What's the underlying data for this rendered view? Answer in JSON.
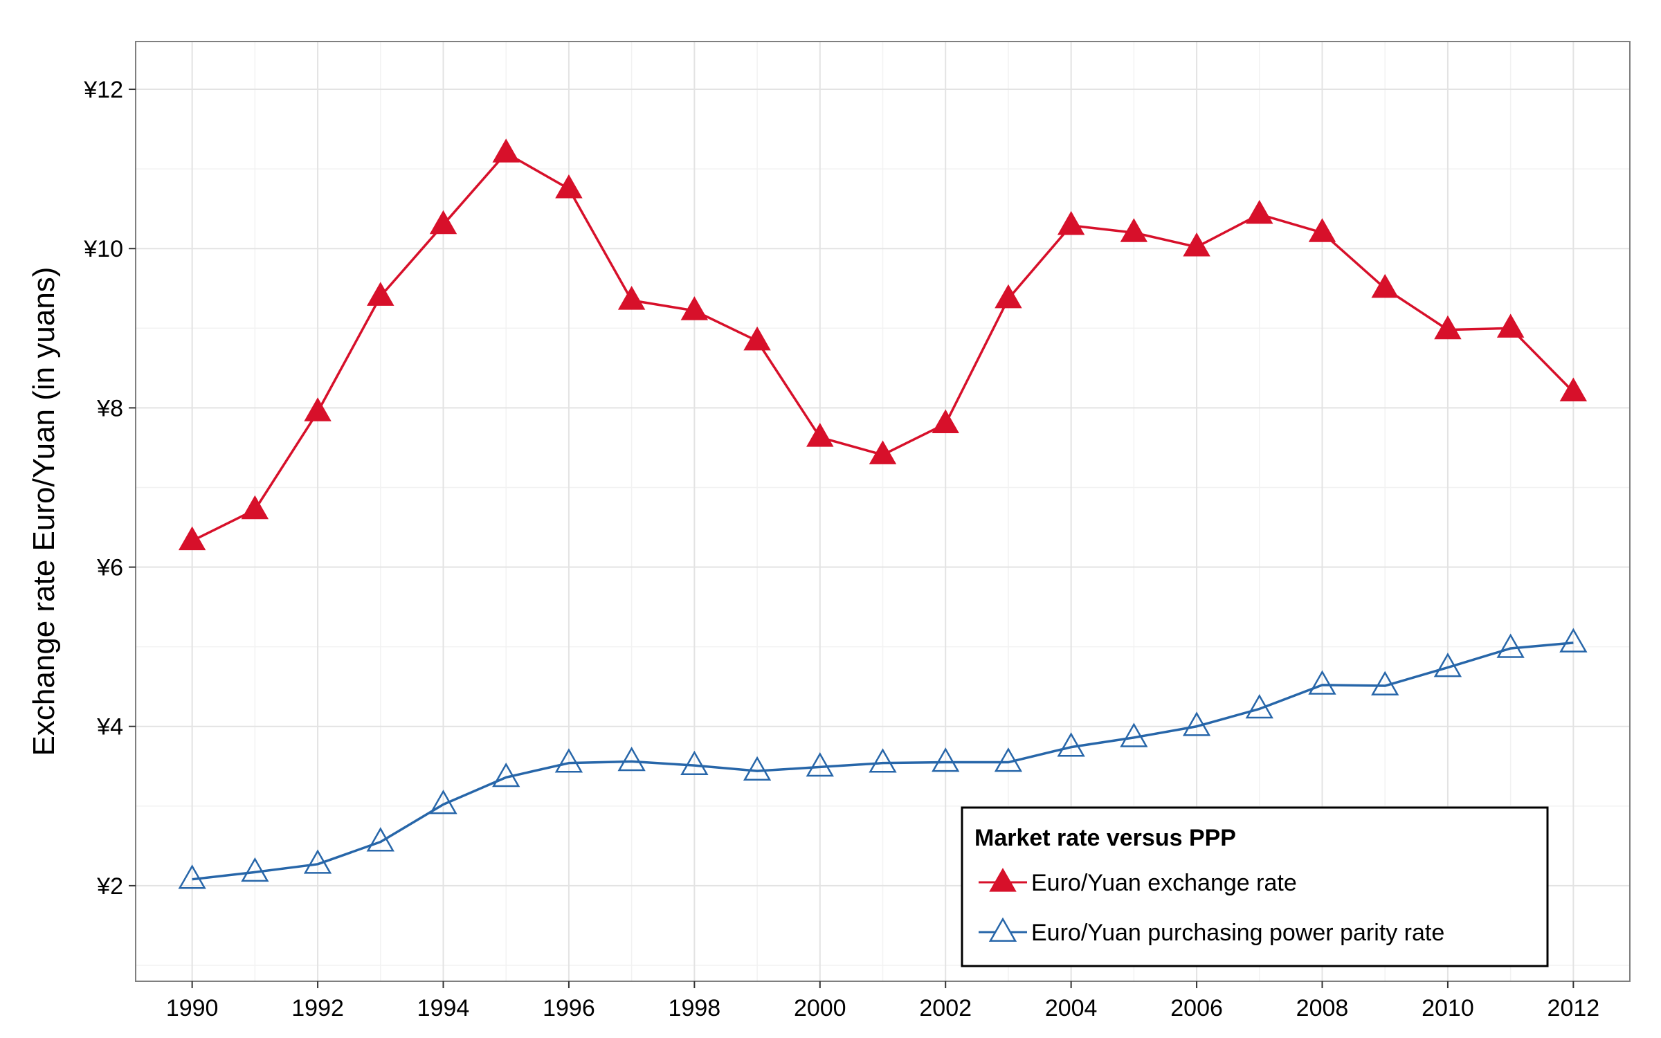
{
  "chart_data": {
    "type": "line",
    "title": "",
    "xlabel": "",
    "ylabel": "Exchange rate Euro/Yuan (in yuans)",
    "x": [
      1990,
      1991,
      1992,
      1993,
      1994,
      1995,
      1996,
      1997,
      1998,
      1999,
      2000,
      2001,
      2002,
      2003,
      2004,
      2005,
      2006,
      2007,
      2008,
      2009,
      2010,
      2011,
      2012
    ],
    "xlim": [
      1989.1,
      2012.9
    ],
    "ylim": [
      0.8,
      12.6
    ],
    "x_ticks": [
      1990,
      1992,
      1994,
      1996,
      1998,
      2000,
      2002,
      2004,
      2006,
      2008,
      2010,
      2012
    ],
    "x_tick_labels": [
      "1990",
      "1992",
      "1994",
      "1996",
      "1998",
      "2000",
      "2002",
      "2004",
      "2006",
      "2008",
      "2010",
      "2012"
    ],
    "y_ticks": [
      2,
      4,
      6,
      8,
      10,
      12
    ],
    "y_tick_labels": [
      "¥2",
      "¥4",
      "¥6",
      "¥8",
      "¥10",
      "¥12"
    ],
    "grid": true,
    "legend": {
      "title": "Market rate versus PPP",
      "position": "bottom-right"
    },
    "series": [
      {
        "name": "Euro/Yuan exchange rate",
        "color": "#d7102a",
        "marker": "filled-triangle",
        "values": [
          6.33,
          6.72,
          7.95,
          9.4,
          10.3,
          11.2,
          10.75,
          9.35,
          9.22,
          8.84,
          7.63,
          7.41,
          7.8,
          9.37,
          10.29,
          10.2,
          10.02,
          10.43,
          10.2,
          9.5,
          8.98,
          9.0,
          8.2
        ]
      },
      {
        "name": "Euro/Yuan purchasing power parity rate",
        "color": "#2766a9",
        "marker": "open-triangle",
        "values": [
          2.08,
          2.17,
          2.27,
          2.55,
          3.02,
          3.36,
          3.54,
          3.56,
          3.51,
          3.44,
          3.49,
          3.54,
          3.55,
          3.55,
          3.74,
          3.86,
          4.0,
          4.22,
          4.52,
          4.51,
          4.74,
          4.98,
          5.05
        ]
      }
    ]
  }
}
